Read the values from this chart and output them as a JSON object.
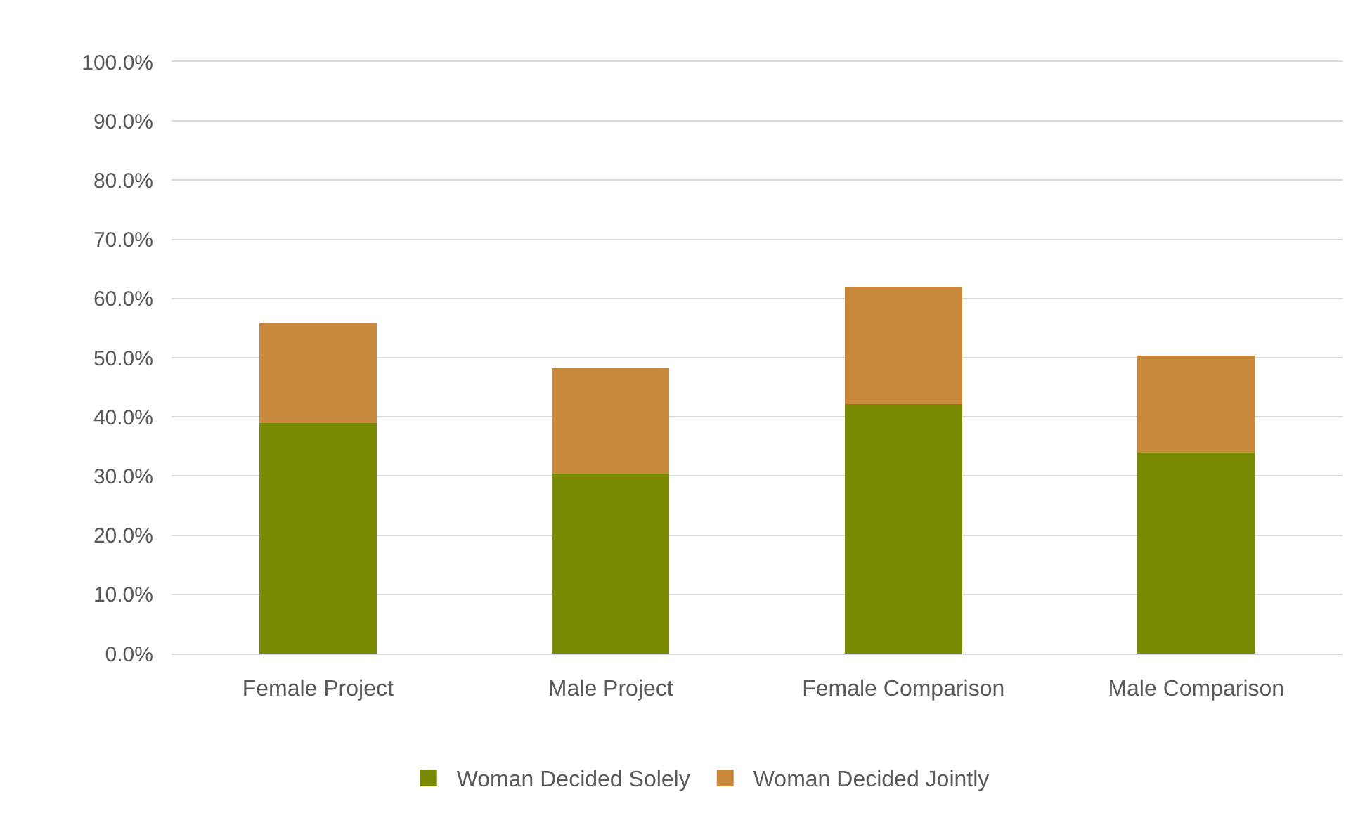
{
  "chart_data": {
    "type": "bar",
    "stacked": true,
    "categories": [
      "Female Project",
      "Male Project",
      "Female Comparison",
      "Male Comparison"
    ],
    "series": [
      {
        "name": "Woman Decided Solely",
        "color": "#7a8a00",
        "values": [
          38.9,
          30.4,
          42.2,
          34.0
        ]
      },
      {
        "name": "Woman Decided Jointly",
        "color": "#c8893d",
        "values": [
          17.0,
          17.8,
          19.8,
          16.3
        ]
      }
    ],
    "ylim": [
      0,
      100
    ],
    "yticks": [
      {
        "value": 0,
        "label": "0.0%"
      },
      {
        "value": 10,
        "label": "10.0%"
      },
      {
        "value": 20,
        "label": "20.0%"
      },
      {
        "value": 30,
        "label": "30.0%"
      },
      {
        "value": 40,
        "label": "40.0%"
      },
      {
        "value": 50,
        "label": "50.0%"
      },
      {
        "value": 60,
        "label": "60.0%"
      },
      {
        "value": 70,
        "label": "70.0%"
      },
      {
        "value": 80,
        "label": "80.0%"
      },
      {
        "value": 90,
        "label": "90.0%"
      },
      {
        "value": 100,
        "label": "100.0%"
      }
    ],
    "grid": "y",
    "legend": "bottom"
  }
}
